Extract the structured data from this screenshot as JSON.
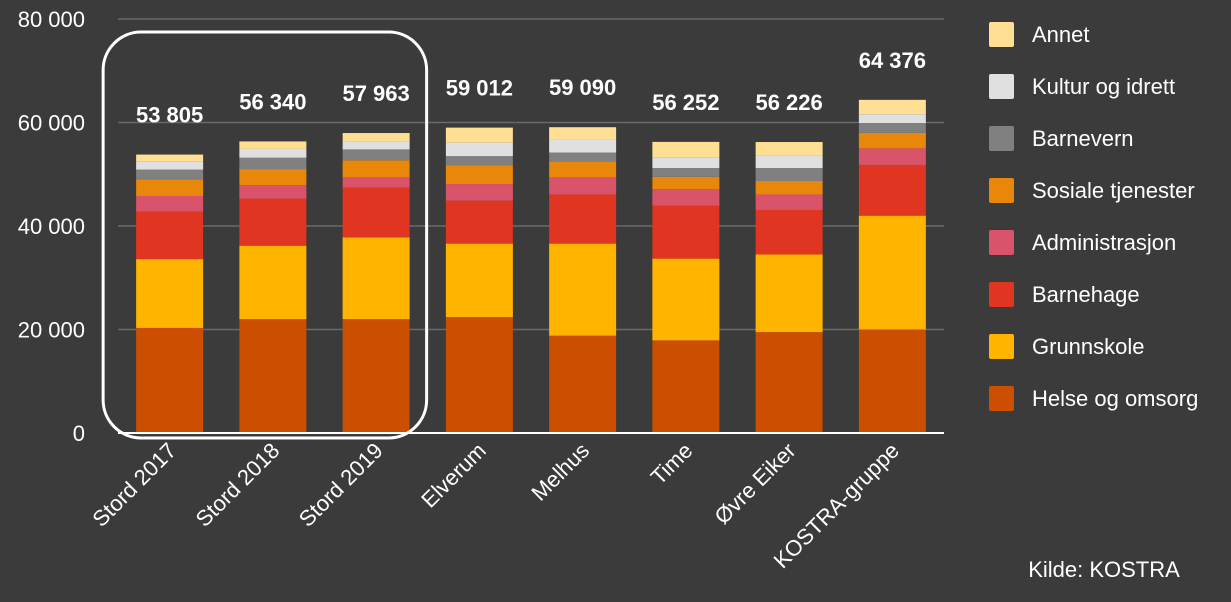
{
  "chart_data": {
    "type": "bar",
    "stacked": true,
    "categories": [
      "Stord 2017",
      "Stord 2018",
      "Stord 2019",
      "Elverum",
      "Melhus",
      "Time",
      "Øvre Eiker",
      "KOSTRA-gruppe"
    ],
    "totals": [
      53805,
      56340,
      57963,
      59012,
      59090,
      56252,
      56226,
      64376
    ],
    "total_labels": [
      "53 805",
      "56 340",
      "57 963",
      "59 012",
      "59 090",
      "56 252",
      "56 226",
      "64 376"
    ],
    "series": [
      {
        "name": "Helse og omsorg",
        "color": "#cc4e00",
        "values": [
          20300,
          22000,
          22000,
          22400,
          18800,
          17900,
          19500,
          20000
        ]
      },
      {
        "name": "Grunnskole",
        "color": "#ffb400",
        "values": [
          13300,
          14200,
          15800,
          14200,
          17800,
          15800,
          15000,
          22000
        ]
      },
      {
        "name": "Barnehage",
        "color": "#e03520",
        "values": [
          9200,
          9100,
          9600,
          8300,
          9500,
          10200,
          8600,
          9800
        ]
      },
      {
        "name": "Administrasjon",
        "color": "#d9546a",
        "values": [
          3000,
          2600,
          2000,
          3200,
          3300,
          3200,
          3000,
          3200
        ]
      },
      {
        "name": "Sosiale tjenester",
        "color": "#e8870a",
        "values": [
          3200,
          3100,
          3300,
          3600,
          3100,
          2400,
          2600,
          3000
        ]
      },
      {
        "name": "Barnevern",
        "color": "#808080",
        "values": [
          1900,
          2200,
          2100,
          1800,
          1700,
          1700,
          2500,
          1900
        ]
      },
      {
        "name": "Kultur og idrett",
        "color": "#e0e0e0",
        "values": [
          1500,
          1700,
          1600,
          2600,
          2600,
          2000,
          2400,
          1700
        ]
      },
      {
        "name": "Annet",
        "color": "#ffdf94",
        "values": [
          1405,
          1440,
          1563,
          2912,
          2290,
          3052,
          2626,
          2776
        ]
      }
    ],
    "legend_order": [
      "Annet",
      "Kultur og idrett",
      "Barnevern",
      "Sosiale tjenester",
      "Administrasjon",
      "Barnehage",
      "Grunnskole",
      "Helse og omsorg"
    ],
    "y_ticks": [
      0,
      20000,
      40000,
      60000,
      80000
    ],
    "y_tick_labels": [
      "0",
      "20 000",
      "40 000",
      "60 000",
      "80 000"
    ],
    "ylim": [
      0,
      80000
    ],
    "grid": true,
    "legend_position": "right",
    "highlight_group": [
      "Stord 2017",
      "Stord 2018",
      "Stord 2019"
    ],
    "source_note": "Kilde: KOSTRA"
  }
}
